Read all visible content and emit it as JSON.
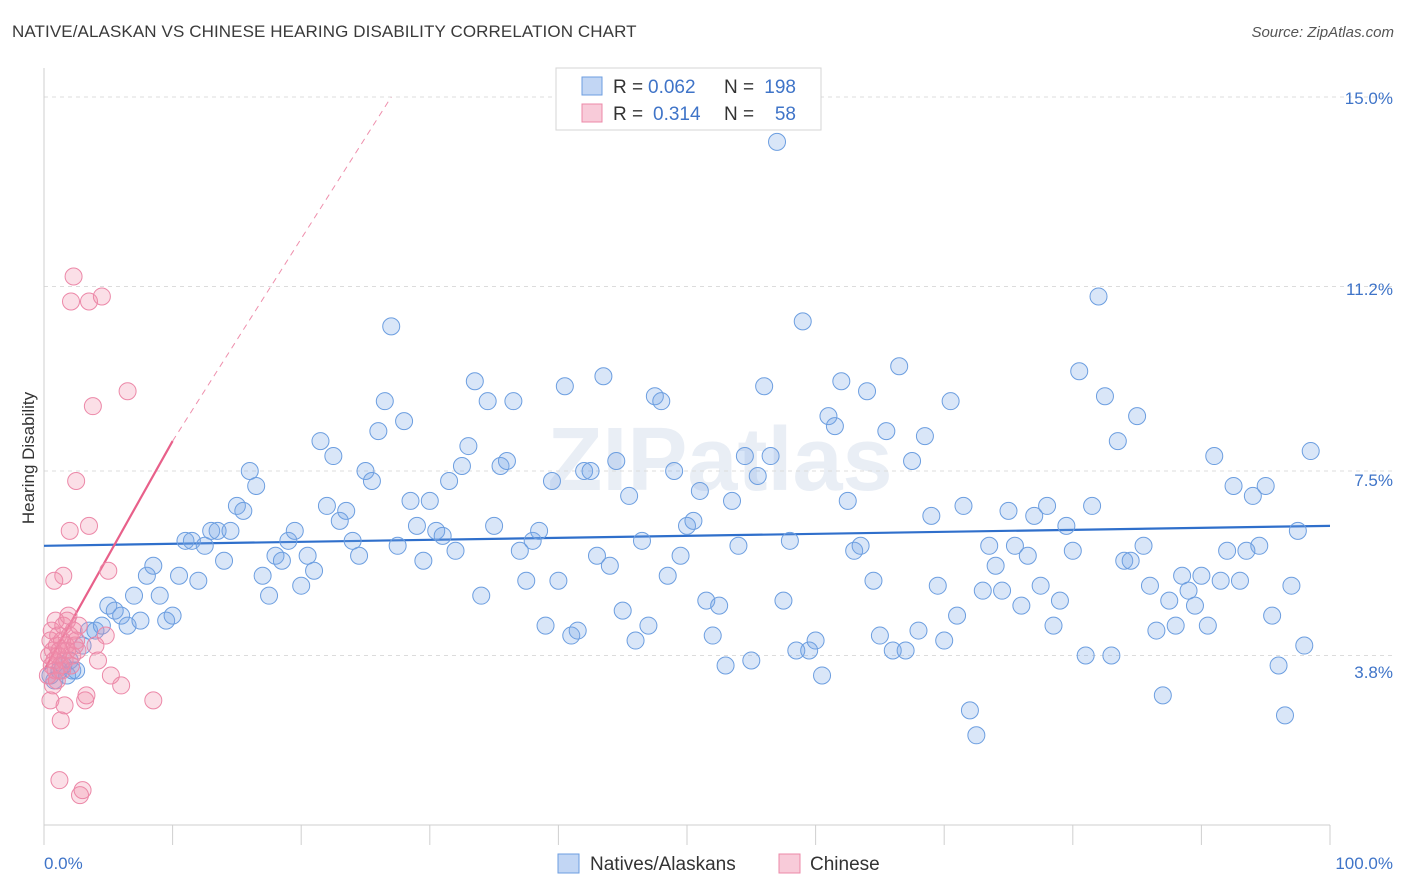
{
  "header": {
    "title": "NATIVE/ALASKAN VS CHINESE HEARING DISABILITY CORRELATION CHART",
    "source": "Source: ZipAtlas.com"
  },
  "watermark": "ZIPatlas",
  "chart_data": {
    "type": "scatter",
    "ylabel": "Hearing Disability",
    "xlim": [
      0,
      100
    ],
    "ylim": [
      0.0,
      15.0
    ],
    "x_tick_labels": [
      "0.0%",
      "100.0%"
    ],
    "y_ticks": [
      3.8,
      7.5,
      11.2,
      15.0
    ],
    "y_tick_labels": [
      "3.8%",
      "7.5%",
      "11.2%",
      "15.0%"
    ],
    "grid": true,
    "legend": {
      "placement": "top-center",
      "rows": [
        {
          "r_label": "R =",
          "r_value": "0.062",
          "n_label": "N =",
          "n_value": "198"
        },
        {
          "r_label": "R =",
          "r_value": "0.314",
          "n_label": "N =",
          "n_value": "58"
        }
      ]
    },
    "bottom_legend": [
      "Natives/Alaskans",
      "Chinese"
    ],
    "colors": {
      "native_fill": "rgba(120,165,230,0.28)",
      "native_stroke": "#6c9ee0",
      "native_line": "#2f6fcb",
      "chinese_fill": "rgba(240,140,170,0.28)",
      "chinese_stroke": "#ec88a8",
      "chinese_line": "#e8608a"
    },
    "series": [
      {
        "name": "Natives/Alaskans",
        "trend": {
          "x0": 0,
          "y0": 6.0,
          "x1": 100,
          "y1": 6.4
        },
        "points": [
          [
            0.5,
            3.4
          ],
          [
            0.8,
            3.3
          ],
          [
            1.2,
            3.5
          ],
          [
            1.5,
            3.6
          ],
          [
            1.8,
            3.4
          ],
          [
            2.0,
            3.7
          ],
          [
            2.2,
            3.5
          ],
          [
            2.5,
            3.5
          ],
          [
            3.0,
            4.0
          ],
          [
            3.5,
            4.3
          ],
          [
            4.0,
            4.3
          ],
          [
            4.5,
            4.4
          ],
          [
            5.0,
            4.8
          ],
          [
            5.5,
            4.7
          ],
          [
            6.0,
            4.6
          ],
          [
            6.5,
            4.4
          ],
          [
            7.0,
            5.0
          ],
          [
            7.5,
            4.5
          ],
          [
            8.0,
            5.4
          ],
          [
            8.5,
            5.6
          ],
          [
            9.0,
            5.0
          ],
          [
            9.5,
            4.5
          ],
          [
            10.0,
            4.6
          ],
          [
            10.5,
            5.4
          ],
          [
            11.0,
            6.1
          ],
          [
            11.5,
            6.1
          ],
          [
            12.0,
            5.3
          ],
          [
            12.5,
            6.0
          ],
          [
            13.0,
            6.3
          ],
          [
            13.5,
            6.3
          ],
          [
            14.0,
            5.7
          ],
          [
            14.5,
            6.3
          ],
          [
            15.0,
            6.8
          ],
          [
            15.5,
            6.7
          ],
          [
            16.0,
            7.5
          ],
          [
            16.5,
            7.2
          ],
          [
            17.0,
            5.4
          ],
          [
            17.5,
            5.0
          ],
          [
            18.0,
            5.8
          ],
          [
            18.5,
            5.7
          ],
          [
            19.0,
            6.1
          ],
          [
            19.5,
            6.3
          ],
          [
            20.0,
            5.2
          ],
          [
            20.5,
            5.8
          ],
          [
            21.0,
            5.5
          ],
          [
            21.5,
            8.1
          ],
          [
            22.0,
            6.8
          ],
          [
            22.5,
            7.8
          ],
          [
            23.0,
            6.5
          ],
          [
            23.5,
            6.7
          ],
          [
            24.0,
            6.1
          ],
          [
            24.5,
            5.8
          ],
          [
            25.0,
            7.5
          ],
          [
            25.5,
            7.3
          ],
          [
            26.0,
            8.3
          ],
          [
            26.5,
            8.9
          ],
          [
            27.0,
            10.4
          ],
          [
            27.5,
            6.0
          ],
          [
            28.0,
            8.5
          ],
          [
            28.5,
            6.9
          ],
          [
            29.0,
            6.4
          ],
          [
            29.5,
            5.7
          ],
          [
            30.0,
            6.9
          ],
          [
            30.5,
            6.3
          ],
          [
            31.0,
            6.2
          ],
          [
            31.5,
            7.3
          ],
          [
            32.0,
            5.9
          ],
          [
            32.5,
            7.6
          ],
          [
            33.0,
            8.0
          ],
          [
            33.5,
            9.3
          ],
          [
            34.0,
            5.0
          ],
          [
            34.5,
            8.9
          ],
          [
            35.0,
            6.4
          ],
          [
            35.5,
            7.6
          ],
          [
            36.0,
            7.7
          ],
          [
            36.5,
            8.9
          ],
          [
            37.0,
            5.9
          ],
          [
            37.5,
            5.3
          ],
          [
            38.0,
            6.1
          ],
          [
            38.5,
            6.3
          ],
          [
            39.0,
            4.4
          ],
          [
            39.5,
            7.3
          ],
          [
            40.0,
            5.3
          ],
          [
            40.5,
            9.2
          ],
          [
            41.0,
            4.2
          ],
          [
            41.5,
            4.3
          ],
          [
            42.0,
            7.5
          ],
          [
            42.5,
            7.5
          ],
          [
            43.0,
            5.8
          ],
          [
            43.5,
            9.4
          ],
          [
            44.0,
            5.6
          ],
          [
            44.5,
            7.7
          ],
          [
            45.0,
            4.7
          ],
          [
            45.5,
            7.0
          ],
          [
            46.0,
            4.1
          ],
          [
            46.5,
            6.1
          ],
          [
            47.0,
            4.4
          ],
          [
            47.5,
            9.0
          ],
          [
            48.0,
            8.9
          ],
          [
            48.5,
            5.4
          ],
          [
            49.0,
            7.5
          ],
          [
            49.5,
            5.8
          ],
          [
            50.0,
            6.4
          ],
          [
            50.5,
            6.5
          ],
          [
            51.0,
            7.1
          ],
          [
            51.5,
            4.9
          ],
          [
            52.0,
            4.2
          ],
          [
            52.5,
            4.8
          ],
          [
            53.0,
            3.6
          ],
          [
            53.5,
            6.9
          ],
          [
            54.0,
            6.0
          ],
          [
            54.5,
            7.8
          ],
          [
            55.0,
            3.7
          ],
          [
            55.5,
            7.4
          ],
          [
            56.0,
            9.2
          ],
          [
            56.5,
            7.8
          ],
          [
            57.0,
            14.1
          ],
          [
            57.5,
            4.9
          ],
          [
            58.0,
            6.1
          ],
          [
            58.5,
            3.9
          ],
          [
            59.0,
            10.5
          ],
          [
            59.5,
            3.9
          ],
          [
            60.0,
            4.1
          ],
          [
            60.5,
            3.4
          ],
          [
            61.0,
            8.6
          ],
          [
            61.5,
            8.4
          ],
          [
            62.0,
            9.3
          ],
          [
            62.5,
            6.9
          ],
          [
            63.0,
            5.9
          ],
          [
            63.5,
            6.0
          ],
          [
            64.0,
            9.1
          ],
          [
            64.5,
            5.3
          ],
          [
            65.0,
            4.2
          ],
          [
            65.5,
            8.3
          ],
          [
            66.0,
            3.9
          ],
          [
            66.5,
            9.6
          ],
          [
            67.0,
            3.9
          ],
          [
            67.5,
            7.7
          ],
          [
            68.0,
            4.3
          ],
          [
            68.5,
            8.2
          ],
          [
            69.0,
            6.6
          ],
          [
            69.5,
            5.2
          ],
          [
            70.0,
            4.1
          ],
          [
            70.5,
            8.9
          ],
          [
            71.0,
            4.6
          ],
          [
            71.5,
            6.8
          ],
          [
            72.0,
            2.7
          ],
          [
            72.5,
            2.2
          ],
          [
            73.0,
            5.1
          ],
          [
            73.5,
            6.0
          ],
          [
            74.0,
            5.6
          ],
          [
            74.5,
            5.1
          ],
          [
            75.0,
            6.7
          ],
          [
            75.5,
            6.0
          ],
          [
            76.0,
            4.8
          ],
          [
            76.5,
            5.8
          ],
          [
            77.0,
            6.6
          ],
          [
            77.5,
            5.2
          ],
          [
            78.0,
            6.8
          ],
          [
            78.5,
            4.4
          ],
          [
            79.0,
            4.9
          ],
          [
            79.5,
            6.4
          ],
          [
            80.0,
            5.9
          ],
          [
            80.5,
            9.5
          ],
          [
            81.0,
            3.8
          ],
          [
            81.5,
            6.8
          ],
          [
            82.0,
            11.0
          ],
          [
            82.5,
            9.0
          ],
          [
            83.0,
            3.8
          ],
          [
            83.5,
            8.1
          ],
          [
            84.0,
            5.7
          ],
          [
            84.5,
            5.7
          ],
          [
            85.0,
            8.6
          ],
          [
            85.5,
            6.0
          ],
          [
            86.0,
            5.2
          ],
          [
            86.5,
            4.3
          ],
          [
            87.0,
            3.0
          ],
          [
            87.5,
            4.9
          ],
          [
            88.0,
            4.4
          ],
          [
            88.5,
            5.4
          ],
          [
            89.0,
            5.1
          ],
          [
            89.5,
            4.8
          ],
          [
            90.0,
            5.4
          ],
          [
            90.5,
            4.4
          ],
          [
            91.0,
            7.8
          ],
          [
            91.5,
            5.3
          ],
          [
            92.0,
            5.9
          ],
          [
            92.5,
            7.2
          ],
          [
            93.0,
            5.3
          ],
          [
            93.5,
            5.9
          ],
          [
            94.0,
            7.0
          ],
          [
            94.5,
            6.0
          ],
          [
            95.0,
            7.2
          ],
          [
            95.5,
            4.6
          ],
          [
            96.0,
            3.6
          ],
          [
            96.5,
            2.6
          ],
          [
            97.0,
            5.2
          ],
          [
            97.5,
            6.3
          ],
          [
            98.0,
            4.0
          ],
          [
            98.5,
            7.9
          ]
        ]
      },
      {
        "name": "Chinese",
        "trend": {
          "x0": 0,
          "y0": 3.5,
          "x1": 10,
          "y1": 8.1,
          "dash_to_x": 27,
          "dash_to_y": 15.0
        },
        "points": [
          [
            0.3,
            3.4
          ],
          [
            0.4,
            3.8
          ],
          [
            0.5,
            4.1
          ],
          [
            0.5,
            2.9
          ],
          [
            0.6,
            3.6
          ],
          [
            0.6,
            4.3
          ],
          [
            0.7,
            3.9
          ],
          [
            0.7,
            3.2
          ],
          [
            0.8,
            3.7
          ],
          [
            0.8,
            5.3
          ],
          [
            0.9,
            4.5
          ],
          [
            0.9,
            3.5
          ],
          [
            1.0,
            3.3
          ],
          [
            1.0,
            4.0
          ],
          [
            1.1,
            3.8
          ],
          [
            1.1,
            4.2
          ],
          [
            1.2,
            3.9
          ],
          [
            1.2,
            1.3
          ],
          [
            1.3,
            3.6
          ],
          [
            1.3,
            2.5
          ],
          [
            1.4,
            4.1
          ],
          [
            1.4,
            3.5
          ],
          [
            1.5,
            4.4
          ],
          [
            1.5,
            5.4
          ],
          [
            1.6,
            3.7
          ],
          [
            1.6,
            2.8
          ],
          [
            1.7,
            4.0
          ],
          [
            1.8,
            4.5
          ],
          [
            1.8,
            3.9
          ],
          [
            1.9,
            4.6
          ],
          [
            2.0,
            6.3
          ],
          [
            2.0,
            4.2
          ],
          [
            2.1,
            3.6
          ],
          [
            2.1,
            10.9
          ],
          [
            2.2,
            3.8
          ],
          [
            2.3,
            4.3
          ],
          [
            2.3,
            11.4
          ],
          [
            2.4,
            4.0
          ],
          [
            2.5,
            4.1
          ],
          [
            2.5,
            7.3
          ],
          [
            2.6,
            3.9
          ],
          [
            2.7,
            4.4
          ],
          [
            2.8,
            1.0
          ],
          [
            3.0,
            1.1
          ],
          [
            3.2,
            2.9
          ],
          [
            3.3,
            3.0
          ],
          [
            3.5,
            6.4
          ],
          [
            3.5,
            10.9
          ],
          [
            3.8,
            8.8
          ],
          [
            4.0,
            4.0
          ],
          [
            4.2,
            3.7
          ],
          [
            4.5,
            11.0
          ],
          [
            4.8,
            4.2
          ],
          [
            5.0,
            5.5
          ],
          [
            5.2,
            3.4
          ],
          [
            6.0,
            3.2
          ],
          [
            6.5,
            9.1
          ],
          [
            8.5,
            2.9
          ]
        ]
      }
    ]
  }
}
